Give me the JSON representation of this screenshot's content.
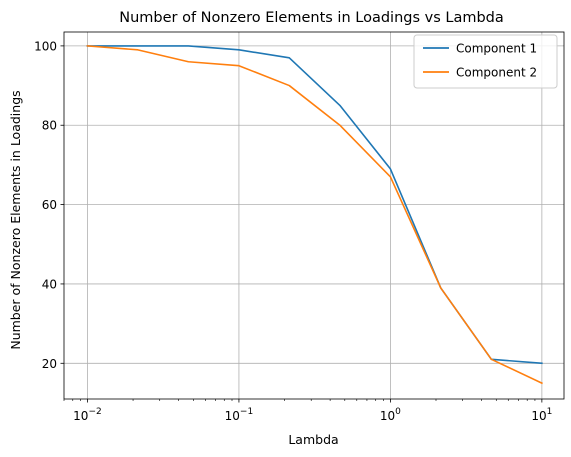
{
  "chart_data": {
    "type": "line",
    "title": "Number of Nonzero Elements in Loadings vs Lambda",
    "xlabel": "Lambda",
    "ylabel": "Number of Nonzero Elements in Loadings",
    "xscale": "log",
    "xlim": [
      0.007,
      14
    ],
    "ylim": [
      11,
      103.5
    ],
    "grid": true,
    "legend_position": "top-right",
    "x": [
      0.01,
      0.0215,
      0.0464,
      0.1,
      0.215,
      0.464,
      1.0,
      2.15,
      4.64,
      10.0
    ],
    "x_ticks": [
      {
        "value": 0.01,
        "base": "10",
        "exp": "−2"
      },
      {
        "value": 0.1,
        "base": "10",
        "exp": "−1"
      },
      {
        "value": 1,
        "base": "10",
        "exp": "0"
      },
      {
        "value": 10,
        "base": "10",
        "exp": "1"
      }
    ],
    "y_ticks": [
      20,
      40,
      60,
      80,
      100
    ],
    "series": [
      {
        "name": "Component 1",
        "color": "#1f77b4",
        "values": [
          100,
          100,
          100,
          99,
          97,
          85,
          69,
          39,
          21,
          20
        ]
      },
      {
        "name": "Component 2",
        "color": "#ff7f0e",
        "values": [
          100,
          99,
          96,
          95,
          90,
          80,
          67,
          39,
          21,
          15
        ]
      }
    ]
  }
}
